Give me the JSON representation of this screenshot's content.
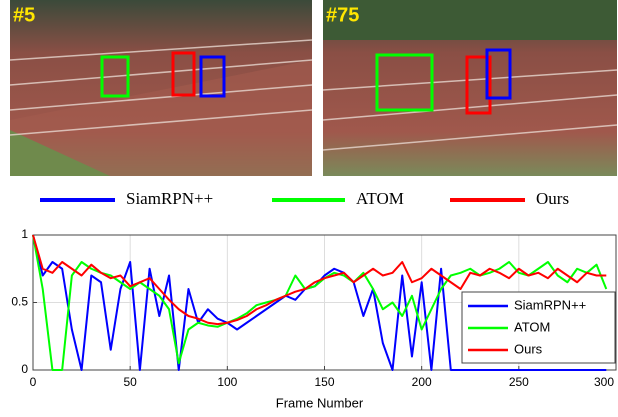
{
  "frames": [
    {
      "label": "#5"
    },
    {
      "label": "#75"
    }
  ],
  "chart_data": {
    "type": "line",
    "x": [
      0,
      5,
      10,
      15,
      20,
      25,
      30,
      35,
      40,
      45,
      50,
      55,
      60,
      65,
      70,
      75,
      80,
      85,
      90,
      95,
      100,
      105,
      110,
      115,
      120,
      125,
      130,
      135,
      140,
      145,
      150,
      155,
      160,
      165,
      170,
      175,
      180,
      185,
      190,
      195,
      200,
      205,
      210,
      215,
      220,
      225,
      230,
      235,
      240,
      245,
      250,
      255,
      260,
      265,
      270,
      275,
      280,
      285,
      290,
      295
    ],
    "series": [
      {
        "name": "SiamRPN++",
        "color": "#0000ff",
        "values": [
          1.0,
          0.7,
          0.8,
          0.75,
          0.3,
          0.0,
          0.7,
          0.65,
          0.15,
          0.6,
          0.8,
          0.0,
          0.75,
          0.4,
          0.7,
          0.0,
          0.6,
          0.35,
          0.45,
          0.38,
          0.35,
          0.3,
          0.35,
          0.4,
          0.45,
          0.5,
          0.55,
          0.52,
          0.6,
          0.62,
          0.7,
          0.75,
          0.72,
          0.65,
          0.4,
          0.6,
          0.2,
          0.0,
          0.7,
          0.1,
          0.65,
          0.0,
          0.75,
          0.0,
          0.0,
          0.0,
          0.0,
          0.0,
          0.0,
          0.0,
          0.0,
          0.0,
          0.0,
          0.0,
          0.0,
          0.0,
          0.0,
          0.0,
          0.0,
          0.0
        ]
      },
      {
        "name": "ATOM",
        "color": "#00ff00",
        "values": [
          1.0,
          0.6,
          0.0,
          0.0,
          0.7,
          0.8,
          0.75,
          0.72,
          0.7,
          0.65,
          0.6,
          0.65,
          0.6,
          0.55,
          0.45,
          0.05,
          0.3,
          0.35,
          0.33,
          0.32,
          0.35,
          0.38,
          0.42,
          0.48,
          0.5,
          0.52,
          0.55,
          0.7,
          0.6,
          0.62,
          0.68,
          0.72,
          0.7,
          0.65,
          0.72,
          0.6,
          0.45,
          0.5,
          0.4,
          0.55,
          0.3,
          0.45,
          0.6,
          0.7,
          0.72,
          0.75,
          0.7,
          0.72,
          0.75,
          0.8,
          0.72,
          0.7,
          0.75,
          0.8,
          0.7,
          0.65,
          0.75,
          0.72,
          0.78,
          0.6
        ]
      },
      {
        "name": "Ours",
        "color": "#ff0000",
        "values": [
          1.0,
          0.75,
          0.72,
          0.8,
          0.75,
          0.7,
          0.78,
          0.72,
          0.68,
          0.7,
          0.62,
          0.65,
          0.68,
          0.6,
          0.52,
          0.45,
          0.4,
          0.38,
          0.35,
          0.34,
          0.35,
          0.37,
          0.4,
          0.45,
          0.48,
          0.52,
          0.55,
          0.58,
          0.6,
          0.65,
          0.68,
          0.7,
          0.72,
          0.65,
          0.7,
          0.75,
          0.7,
          0.72,
          0.8,
          0.65,
          0.68,
          0.75,
          0.7,
          0.65,
          0.6,
          0.72,
          0.7,
          0.75,
          0.72,
          0.68,
          0.75,
          0.7,
          0.72,
          0.68,
          0.75,
          0.7,
          0.65,
          0.72,
          0.7,
          0.7
        ]
      }
    ],
    "xlabel": "Frame Number",
    "xlim": [
      0,
      300
    ],
    "xticks": [
      0,
      50,
      100,
      150,
      200,
      250,
      300
    ],
    "ylim": [
      0,
      1
    ],
    "yticks": [
      0,
      0.5,
      1
    ],
    "grid": true,
    "legend": "lower right"
  }
}
